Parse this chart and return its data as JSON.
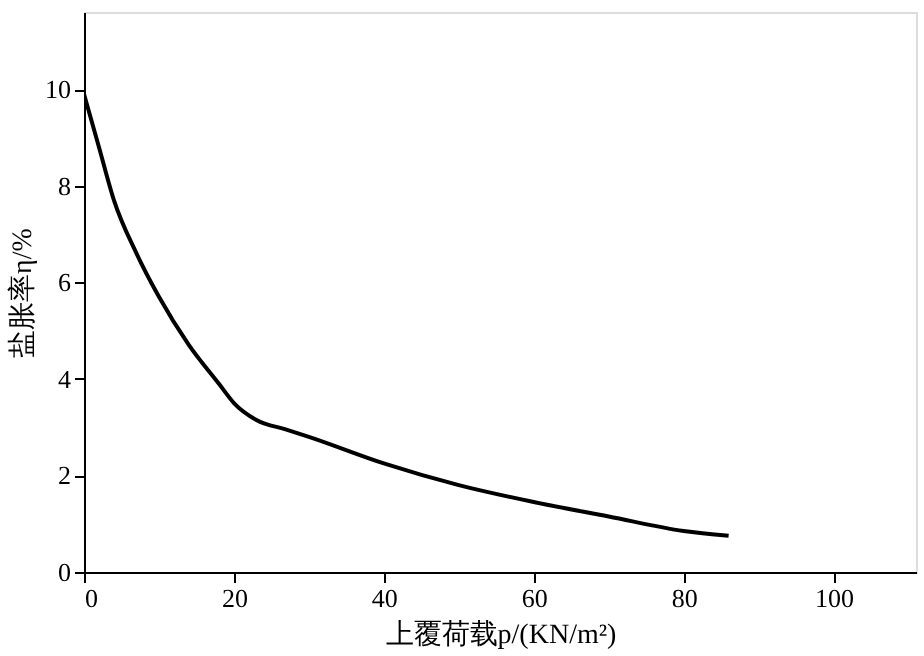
{
  "chart_data": {
    "type": "line",
    "xlabel": "上覆荷载p/(KN/m²)",
    "ylabel": "盐胀率η/%",
    "x": [
      0,
      2,
      4,
      7,
      10,
      14,
      18,
      20,
      23,
      27,
      30,
      40,
      50,
      60,
      70,
      80,
      86
    ],
    "series": [
      {
        "color": "#000000",
        "values": [
          9.9,
          8.8,
          7.7,
          6.6,
          5.7,
          4.7,
          3.9,
          3.5,
          3.15,
          2.95,
          2.8,
          2.25,
          1.8,
          1.45,
          1.15,
          0.85,
          0.75
        ]
      }
    ],
    "xlim": [
      0,
      111
    ],
    "ylim": [
      0,
      11.6
    ],
    "xticks": [
      0,
      20,
      40,
      60,
      80,
      100
    ],
    "yticks": [
      0,
      2,
      4,
      6,
      8,
      10
    ],
    "grid": false,
    "legend": false,
    "marker": "none",
    "line_style": "solid"
  }
}
